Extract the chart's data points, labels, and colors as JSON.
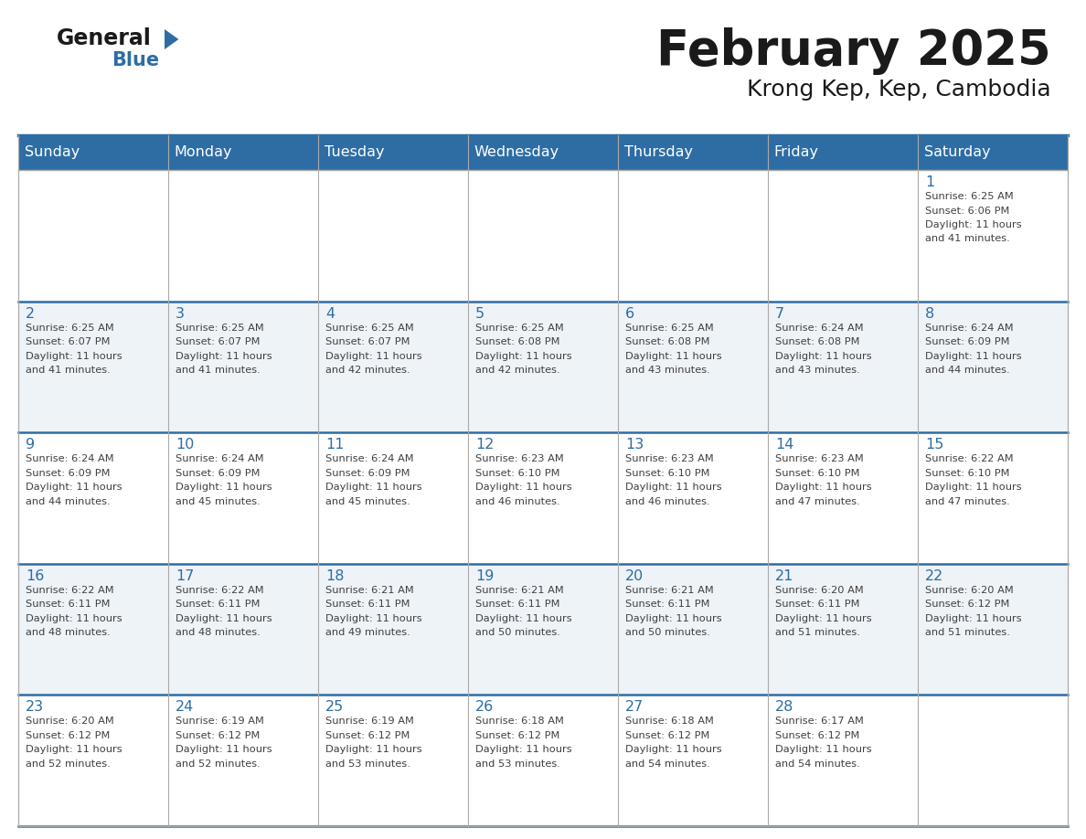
{
  "title": "February 2025",
  "subtitle": "Krong Kep, Kep, Cambodia",
  "header_color": "#2E6DA4",
  "header_text_color": "#FFFFFF",
  "day_number_color": "#2E6DA4",
  "text_color": "#404040",
  "border_color": "#AAAAAA",
  "line_color_week": "#2E6DA4",
  "days_of_week": [
    "Sunday",
    "Monday",
    "Tuesday",
    "Wednesday",
    "Thursday",
    "Friday",
    "Saturday"
  ],
  "weeks": [
    [
      {
        "day": null,
        "sunrise": null,
        "sunset": null,
        "daylight": null
      },
      {
        "day": null,
        "sunrise": null,
        "sunset": null,
        "daylight": null
      },
      {
        "day": null,
        "sunrise": null,
        "sunset": null,
        "daylight": null
      },
      {
        "day": null,
        "sunrise": null,
        "sunset": null,
        "daylight": null
      },
      {
        "day": null,
        "sunrise": null,
        "sunset": null,
        "daylight": null
      },
      {
        "day": null,
        "sunrise": null,
        "sunset": null,
        "daylight": null
      },
      {
        "day": 1,
        "sunrise": "6:25 AM",
        "sunset": "6:06 PM",
        "daylight": "11 hours and 41 minutes."
      }
    ],
    [
      {
        "day": 2,
        "sunrise": "6:25 AM",
        "sunset": "6:07 PM",
        "daylight": "11 hours and 41 minutes."
      },
      {
        "day": 3,
        "sunrise": "6:25 AM",
        "sunset": "6:07 PM",
        "daylight": "11 hours and 41 minutes."
      },
      {
        "day": 4,
        "sunrise": "6:25 AM",
        "sunset": "6:07 PM",
        "daylight": "11 hours and 42 minutes."
      },
      {
        "day": 5,
        "sunrise": "6:25 AM",
        "sunset": "6:08 PM",
        "daylight": "11 hours and 42 minutes."
      },
      {
        "day": 6,
        "sunrise": "6:25 AM",
        "sunset": "6:08 PM",
        "daylight": "11 hours and 43 minutes."
      },
      {
        "day": 7,
        "sunrise": "6:24 AM",
        "sunset": "6:08 PM",
        "daylight": "11 hours and 43 minutes."
      },
      {
        "day": 8,
        "sunrise": "6:24 AM",
        "sunset": "6:09 PM",
        "daylight": "11 hours and 44 minutes."
      }
    ],
    [
      {
        "day": 9,
        "sunrise": "6:24 AM",
        "sunset": "6:09 PM",
        "daylight": "11 hours and 44 minutes."
      },
      {
        "day": 10,
        "sunrise": "6:24 AM",
        "sunset": "6:09 PM",
        "daylight": "11 hours and 45 minutes."
      },
      {
        "day": 11,
        "sunrise": "6:24 AM",
        "sunset": "6:09 PM",
        "daylight": "11 hours and 45 minutes."
      },
      {
        "day": 12,
        "sunrise": "6:23 AM",
        "sunset": "6:10 PM",
        "daylight": "11 hours and 46 minutes."
      },
      {
        "day": 13,
        "sunrise": "6:23 AM",
        "sunset": "6:10 PM",
        "daylight": "11 hours and 46 minutes."
      },
      {
        "day": 14,
        "sunrise": "6:23 AM",
        "sunset": "6:10 PM",
        "daylight": "11 hours and 47 minutes."
      },
      {
        "day": 15,
        "sunrise": "6:22 AM",
        "sunset": "6:10 PM",
        "daylight": "11 hours and 47 minutes."
      }
    ],
    [
      {
        "day": 16,
        "sunrise": "6:22 AM",
        "sunset": "6:11 PM",
        "daylight": "11 hours and 48 minutes."
      },
      {
        "day": 17,
        "sunrise": "6:22 AM",
        "sunset": "6:11 PM",
        "daylight": "11 hours and 48 minutes."
      },
      {
        "day": 18,
        "sunrise": "6:21 AM",
        "sunset": "6:11 PM",
        "daylight": "11 hours and 49 minutes."
      },
      {
        "day": 19,
        "sunrise": "6:21 AM",
        "sunset": "6:11 PM",
        "daylight": "11 hours and 50 minutes."
      },
      {
        "day": 20,
        "sunrise": "6:21 AM",
        "sunset": "6:11 PM",
        "daylight": "11 hours and 50 minutes."
      },
      {
        "day": 21,
        "sunrise": "6:20 AM",
        "sunset": "6:11 PM",
        "daylight": "11 hours and 51 minutes."
      },
      {
        "day": 22,
        "sunrise": "6:20 AM",
        "sunset": "6:12 PM",
        "daylight": "11 hours and 51 minutes."
      }
    ],
    [
      {
        "day": 23,
        "sunrise": "6:20 AM",
        "sunset": "6:12 PM",
        "daylight": "11 hours and 52 minutes."
      },
      {
        "day": 24,
        "sunrise": "6:19 AM",
        "sunset": "6:12 PM",
        "daylight": "11 hours and 52 minutes."
      },
      {
        "day": 25,
        "sunrise": "6:19 AM",
        "sunset": "6:12 PM",
        "daylight": "11 hours and 53 minutes."
      },
      {
        "day": 26,
        "sunrise": "6:18 AM",
        "sunset": "6:12 PM",
        "daylight": "11 hours and 53 minutes."
      },
      {
        "day": 27,
        "sunrise": "6:18 AM",
        "sunset": "6:12 PM",
        "daylight": "11 hours and 54 minutes."
      },
      {
        "day": 28,
        "sunrise": "6:17 AM",
        "sunset": "6:12 PM",
        "daylight": "11 hours and 54 minutes."
      },
      {
        "day": null,
        "sunrise": null,
        "sunset": null,
        "daylight": null
      }
    ]
  ],
  "logo_general_color": "#1a1a1a",
  "logo_blue_color": "#2E6DA4",
  "logo_triangle_color": "#2E6DA4"
}
